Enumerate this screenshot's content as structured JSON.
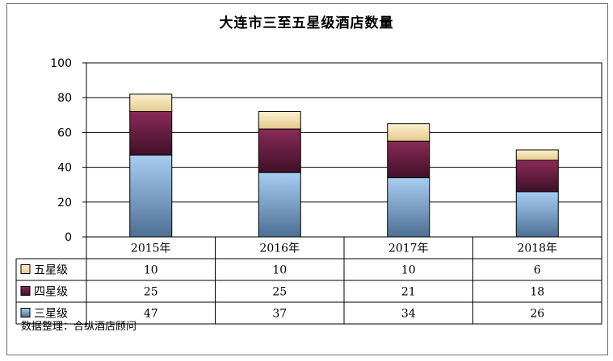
{
  "chart_data": {
    "type": "bar",
    "stacked": true,
    "title": "大连市三至五星级酒店数量",
    "categories": [
      "2015年",
      "2016年",
      "2017年",
      "2018年"
    ],
    "series": [
      {
        "name": "三星级",
        "values": [
          47,
          37,
          34,
          26
        ],
        "color_top": "#a9cdf2",
        "color_bottom": "#4e6f94"
      },
      {
        "name": "四星级",
        "values": [
          25,
          25,
          21,
          18
        ],
        "color_top": "#8a2a57",
        "color_bottom": "#3f1028"
      },
      {
        "name": "五星级",
        "values": [
          10,
          10,
          10,
          6
        ],
        "color_top": "#fdf2d0",
        "color_bottom": "#e4c88c"
      }
    ],
    "ylim": [
      0,
      100
    ],
    "yticks": [
      0,
      20,
      40,
      60,
      80,
      100
    ],
    "grid": true,
    "legend": "data-table-left"
  },
  "source_note": "数据整理：合纵酒店顾问"
}
